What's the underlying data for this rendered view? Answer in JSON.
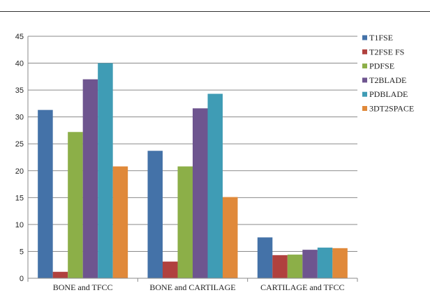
{
  "chart_data": {
    "type": "bar",
    "categories": [
      "BONE and  TFCC",
      "BONE and CARTILAGE",
      "CARTILAGE and TFCC"
    ],
    "series": [
      {
        "name": "T1FSE",
        "color": "#4472a8",
        "values": [
          31.3,
          23.7,
          7.6
        ]
      },
      {
        "name": "T2FSE FS",
        "color": "#b0413e",
        "values": [
          1.2,
          3.1,
          4.3
        ]
      },
      {
        "name": "PDFSE",
        "color": "#8caf48",
        "values": [
          27.2,
          20.8,
          4.4
        ]
      },
      {
        "name": "T2BLADE",
        "color": "#6e558f",
        "values": [
          37.0,
          31.6,
          5.3
        ]
      },
      {
        "name": "PDBLADE",
        "color": "#3f9cb5",
        "values": [
          40.0,
          34.3,
          5.7
        ]
      },
      {
        "name": "3DT2SPACE",
        "color": "#e0893a",
        "values": [
          20.8,
          15.1,
          5.6
        ]
      }
    ],
    "ylim": [
      0,
      45
    ],
    "yticks": [
      "0",
      "5",
      "10",
      "15",
      "20",
      "25",
      "30",
      "35",
      "40",
      "45"
    ],
    "grid": true,
    "legend": "right",
    "title": "",
    "xlabel": "",
    "ylabel": ""
  }
}
